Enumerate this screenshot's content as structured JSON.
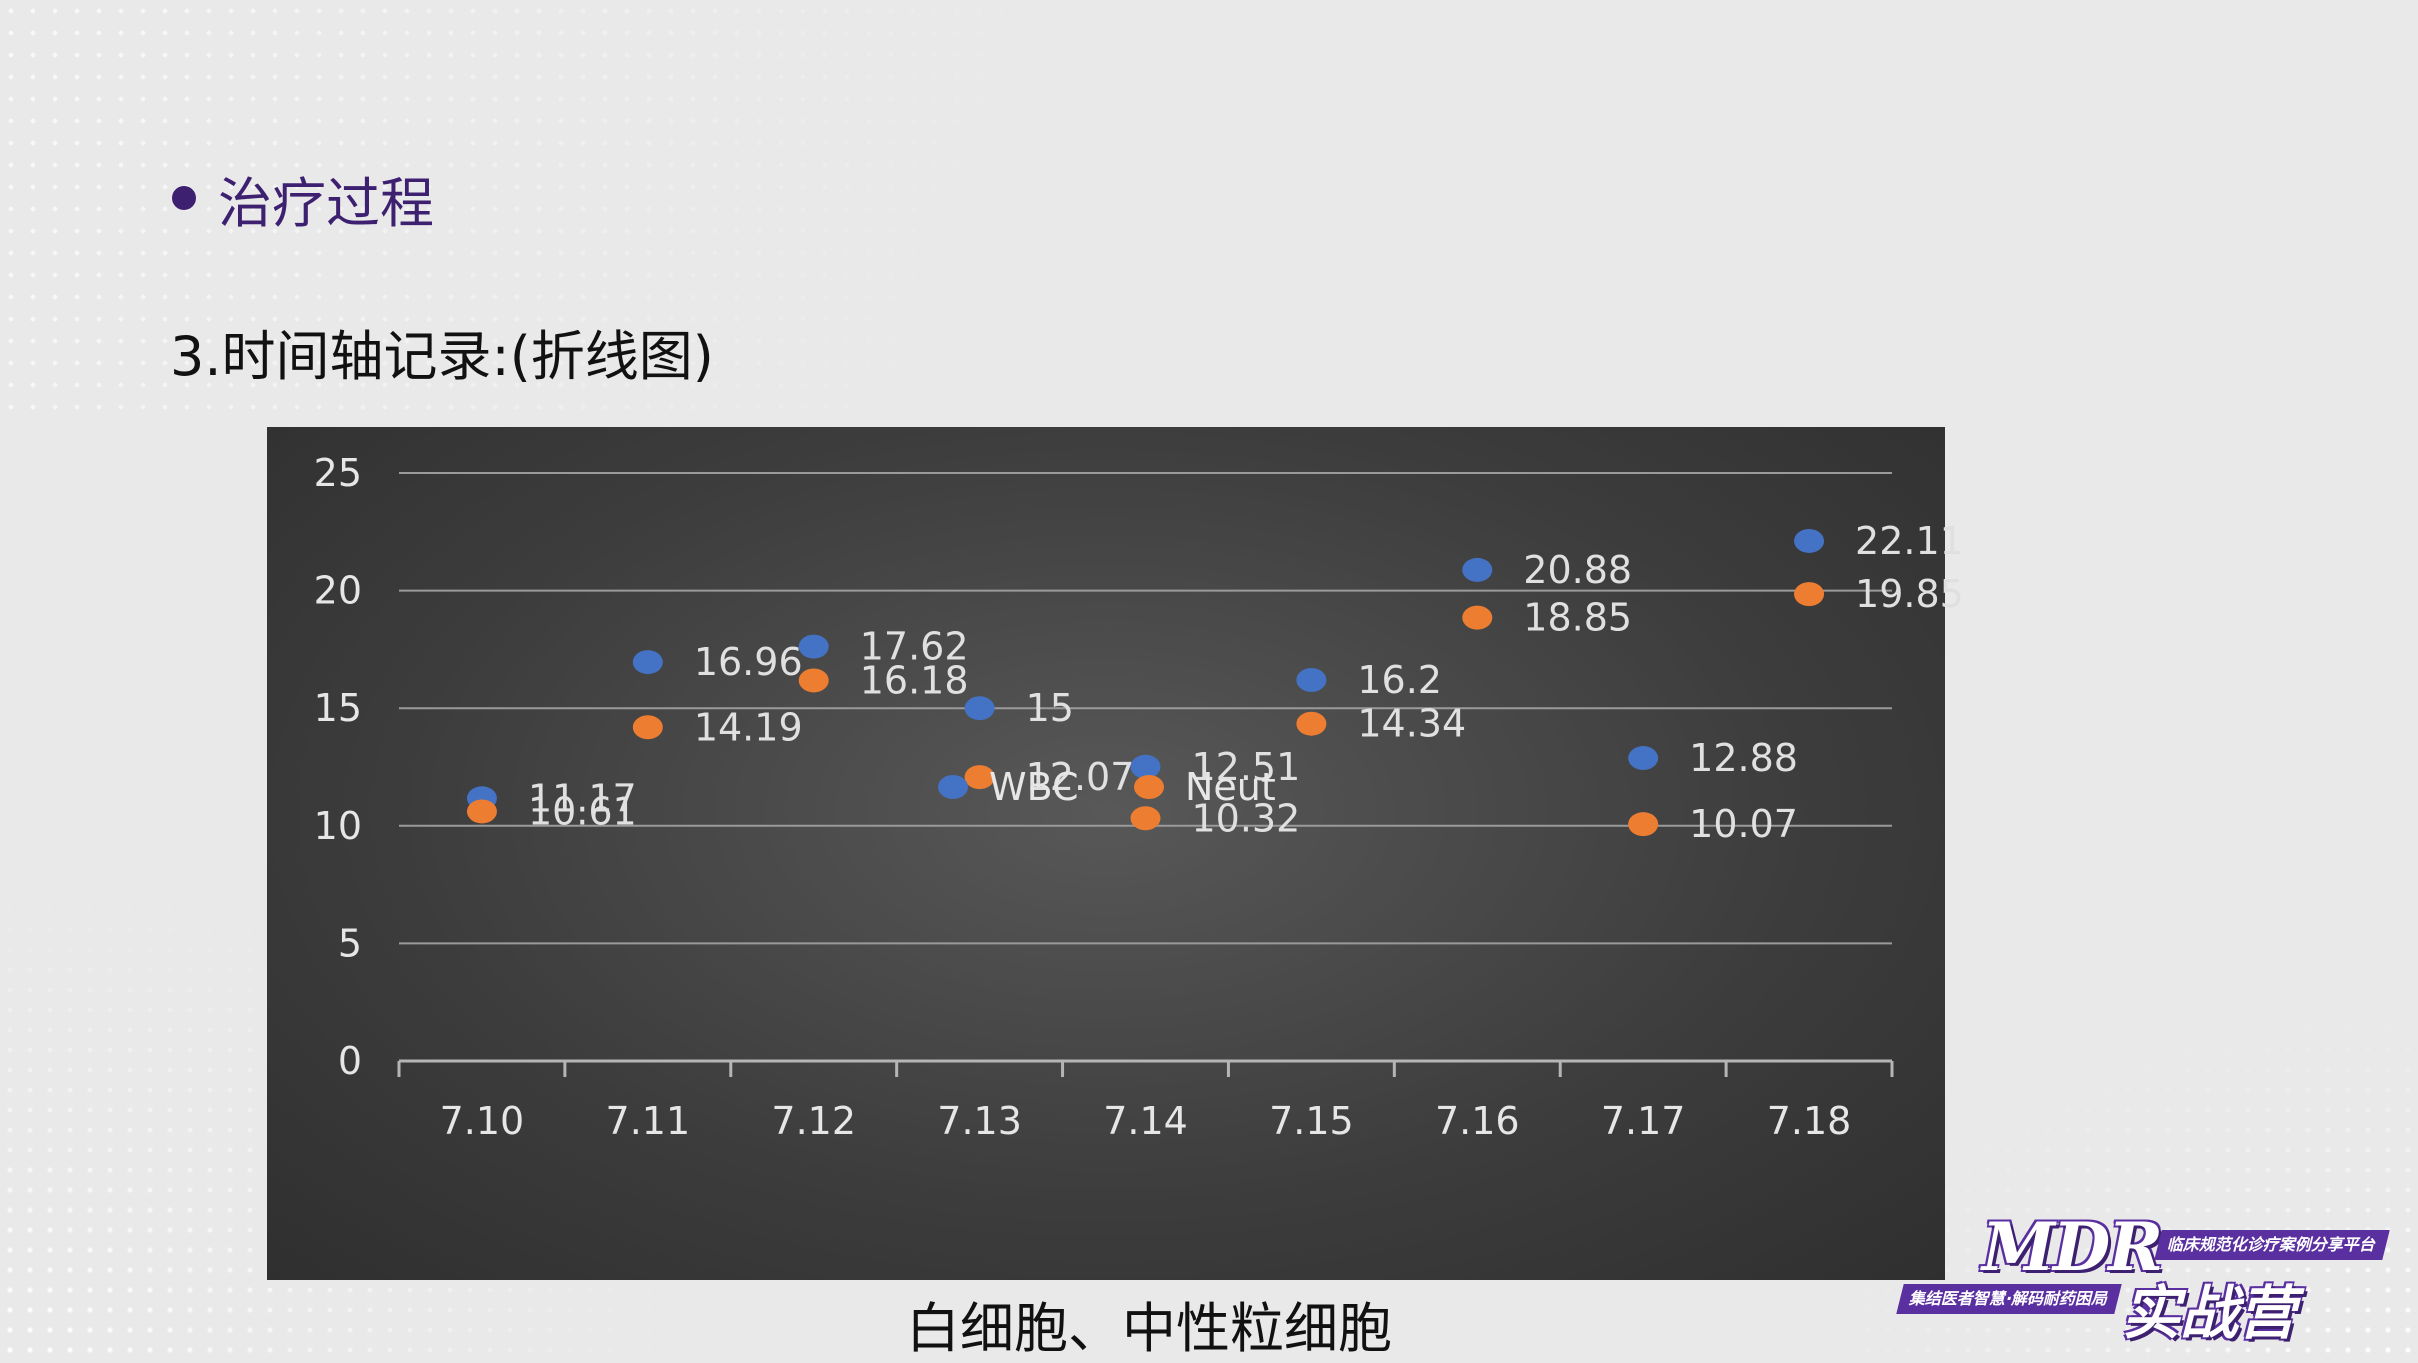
{
  "slide": {
    "section_title": "治疗过程",
    "subtitle": "3.时间轴记录:(折线图)",
    "caption": "白细胞、中性粒细胞",
    "accent_color": "#3d2170"
  },
  "logo": {
    "brand": "MDR",
    "brand_cn": "实战营",
    "tagline_1": "临床规范化诊疗案例分享平台",
    "tagline_2": "集结医者智慧·解码耐药困局"
  },
  "chart_data": {
    "type": "scatter",
    "title": "",
    "xlabel": "",
    "ylabel": "",
    "categories": [
      "7.10",
      "7.11",
      "7.12",
      "7.13",
      "7.14",
      "7.15",
      "7.16",
      "7.17",
      "7.18"
    ],
    "ylim": [
      0,
      25
    ],
    "yticks": [
      0,
      5,
      10,
      15,
      20,
      25
    ],
    "grid": true,
    "legend_position": "bottom",
    "background": "#3c3c3c",
    "series": [
      {
        "name": "WBC",
        "color": "#4472c4",
        "values": [
          11.17,
          16.96,
          17.62,
          15,
          12.51,
          16.2,
          20.88,
          12.88,
          22.11
        ]
      },
      {
        "name": "Neut",
        "color": "#ed7d31",
        "values": [
          10.61,
          14.19,
          16.18,
          12.07,
          10.32,
          14.34,
          18.85,
          10.07,
          19.85
        ]
      }
    ]
  }
}
